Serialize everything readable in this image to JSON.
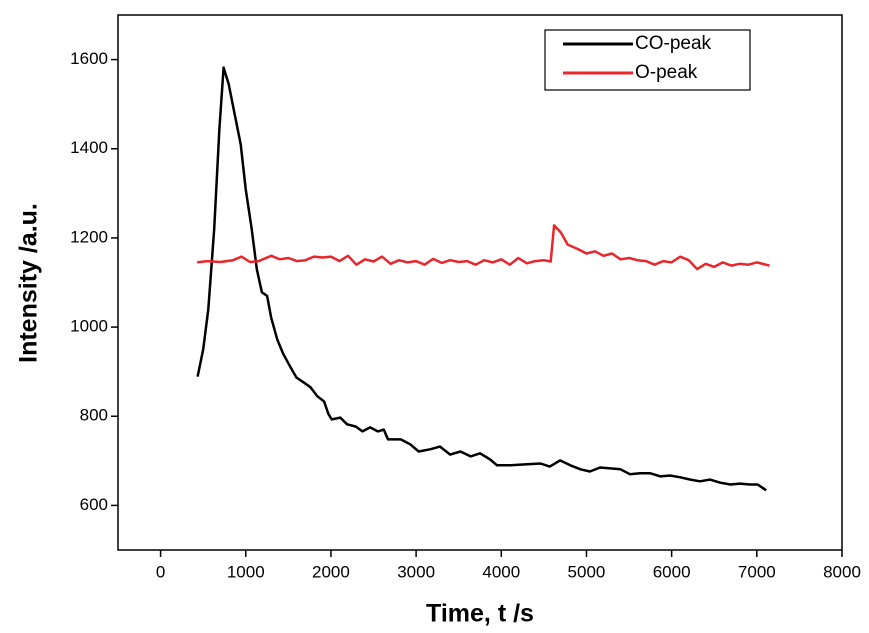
{
  "chart_data": {
    "type": "line",
    "x_label": "Time, t /s",
    "y_label": "Intensity /a.u.",
    "xlim": [
      -500,
      8000
    ],
    "ylim": [
      500,
      1700
    ],
    "xticks": [
      0,
      1000,
      2000,
      3000,
      4000,
      5000,
      6000,
      7000,
      8000
    ],
    "yticks": [
      600,
      800,
      1000,
      1200,
      1400,
      1600
    ],
    "legend": "upper right",
    "series": [
      {
        "name": "CO-peak",
        "color": "#000000",
        "x": [
          434,
          500,
          560,
          630,
          690,
          740,
          800,
          870,
          940,
          1000,
          1070,
          1130,
          1190,
          1250,
          1300,
          1370,
          1440,
          1525,
          1595,
          1680,
          1760,
          1840,
          1920,
          1970,
          2010,
          2110,
          2190,
          2290,
          2370,
          2460,
          2550,
          2620,
          2670,
          2820,
          2930,
          3030,
          3170,
          3280,
          3400,
          3520,
          3640,
          3750,
          3870,
          3950,
          4110,
          4280,
          4460,
          4570,
          4690,
          4810,
          4930,
          5040,
          5160,
          5280,
          5400,
          5510,
          5630,
          5750,
          5870,
          5980,
          6100,
          6220,
          6330,
          6450,
          6570,
          6690,
          6800,
          6920,
          7010,
          7110
        ],
        "values": [
          889,
          950,
          1040,
          1220,
          1445,
          1582,
          1545,
          1477,
          1410,
          1308,
          1220,
          1130,
          1078,
          1070,
          1020,
          972,
          940,
          910,
          887,
          876,
          865,
          845,
          833,
          805,
          793,
          797,
          782,
          777,
          766,
          775,
          766,
          770,
          748,
          748,
          737,
          721,
          726,
          732,
          714,
          721,
          710,
          717,
          703,
          690,
          690,
          692,
          694,
          687,
          701,
          690,
          681,
          676,
          685,
          683,
          681,
          670,
          672,
          672,
          665,
          667,
          663,
          658,
          654,
          658,
          651,
          647,
          649,
          647,
          647,
          634
        ]
      },
      {
        "name": "O-peak",
        "color": "#e8262b",
        "x": [
          430,
          550,
          700,
          850,
          950,
          1050,
          1150,
          1300,
          1400,
          1500,
          1600,
          1700,
          1800,
          1900,
          2000,
          2100,
          2200,
          2300,
          2400,
          2500,
          2600,
          2700,
          2800,
          2900,
          3000,
          3100,
          3200,
          3300,
          3400,
          3500,
          3600,
          3700,
          3800,
          3900,
          4000,
          4100,
          4200,
          4300,
          4400,
          4500,
          4580,
          4620,
          4700,
          4780,
          4900,
          5000,
          5100,
          5200,
          5300,
          5400,
          5500,
          5600,
          5700,
          5800,
          5900,
          6000,
          6100,
          6200,
          6300,
          6400,
          6500,
          6600,
          6700,
          6800,
          6900,
          7000,
          7150
        ],
        "values": [
          1145,
          1148,
          1146,
          1150,
          1158,
          1146,
          1148,
          1160,
          1152,
          1155,
          1148,
          1150,
          1158,
          1156,
          1158,
          1148,
          1160,
          1140,
          1152,
          1147,
          1158,
          1142,
          1150,
          1145,
          1148,
          1140,
          1153,
          1144,
          1150,
          1146,
          1148,
          1140,
          1150,
          1145,
          1152,
          1140,
          1155,
          1143,
          1148,
          1150,
          1147,
          1228,
          1212,
          1185,
          1175,
          1165,
          1170,
          1160,
          1165,
          1152,
          1155,
          1150,
          1148,
          1140,
          1148,
          1145,
          1158,
          1150,
          1130,
          1142,
          1135,
          1145,
          1138,
          1142,
          1140,
          1145,
          1138
        ]
      }
    ]
  }
}
